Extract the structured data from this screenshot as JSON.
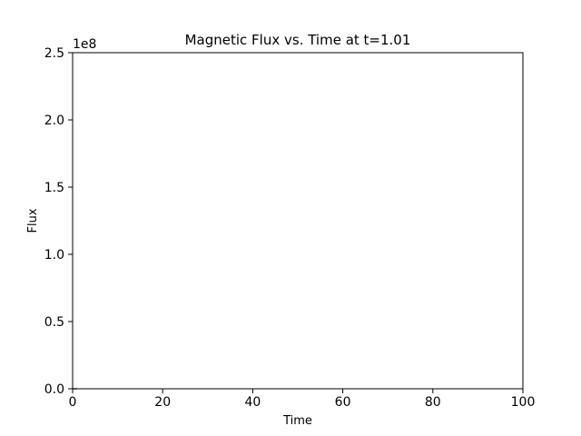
{
  "chart_data": {
    "type": "line",
    "title": "Magnetic Flux vs. Time at t=1.01",
    "xlabel": "Time",
    "ylabel": "Flux",
    "xlim": [
      0,
      100
    ],
    "ylim": [
      0,
      250000000
    ],
    "y_offset_label": "1e8",
    "x_ticks": [
      0,
      20,
      40,
      60,
      80,
      100
    ],
    "x_tick_labels": [
      "0",
      "20",
      "40",
      "60",
      "80",
      "100"
    ],
    "y_ticks": [
      0,
      50000000,
      100000000,
      150000000,
      200000000,
      250000000
    ],
    "y_tick_labels": [
      "0.0",
      "0.5",
      "1.0",
      "1.5",
      "2.0",
      "2.5"
    ],
    "grid": false,
    "series": [
      {
        "color": "#1f77b4",
        "x": [
          0,
          1.01
        ],
        "y": [
          0,
          0
        ]
      }
    ]
  }
}
